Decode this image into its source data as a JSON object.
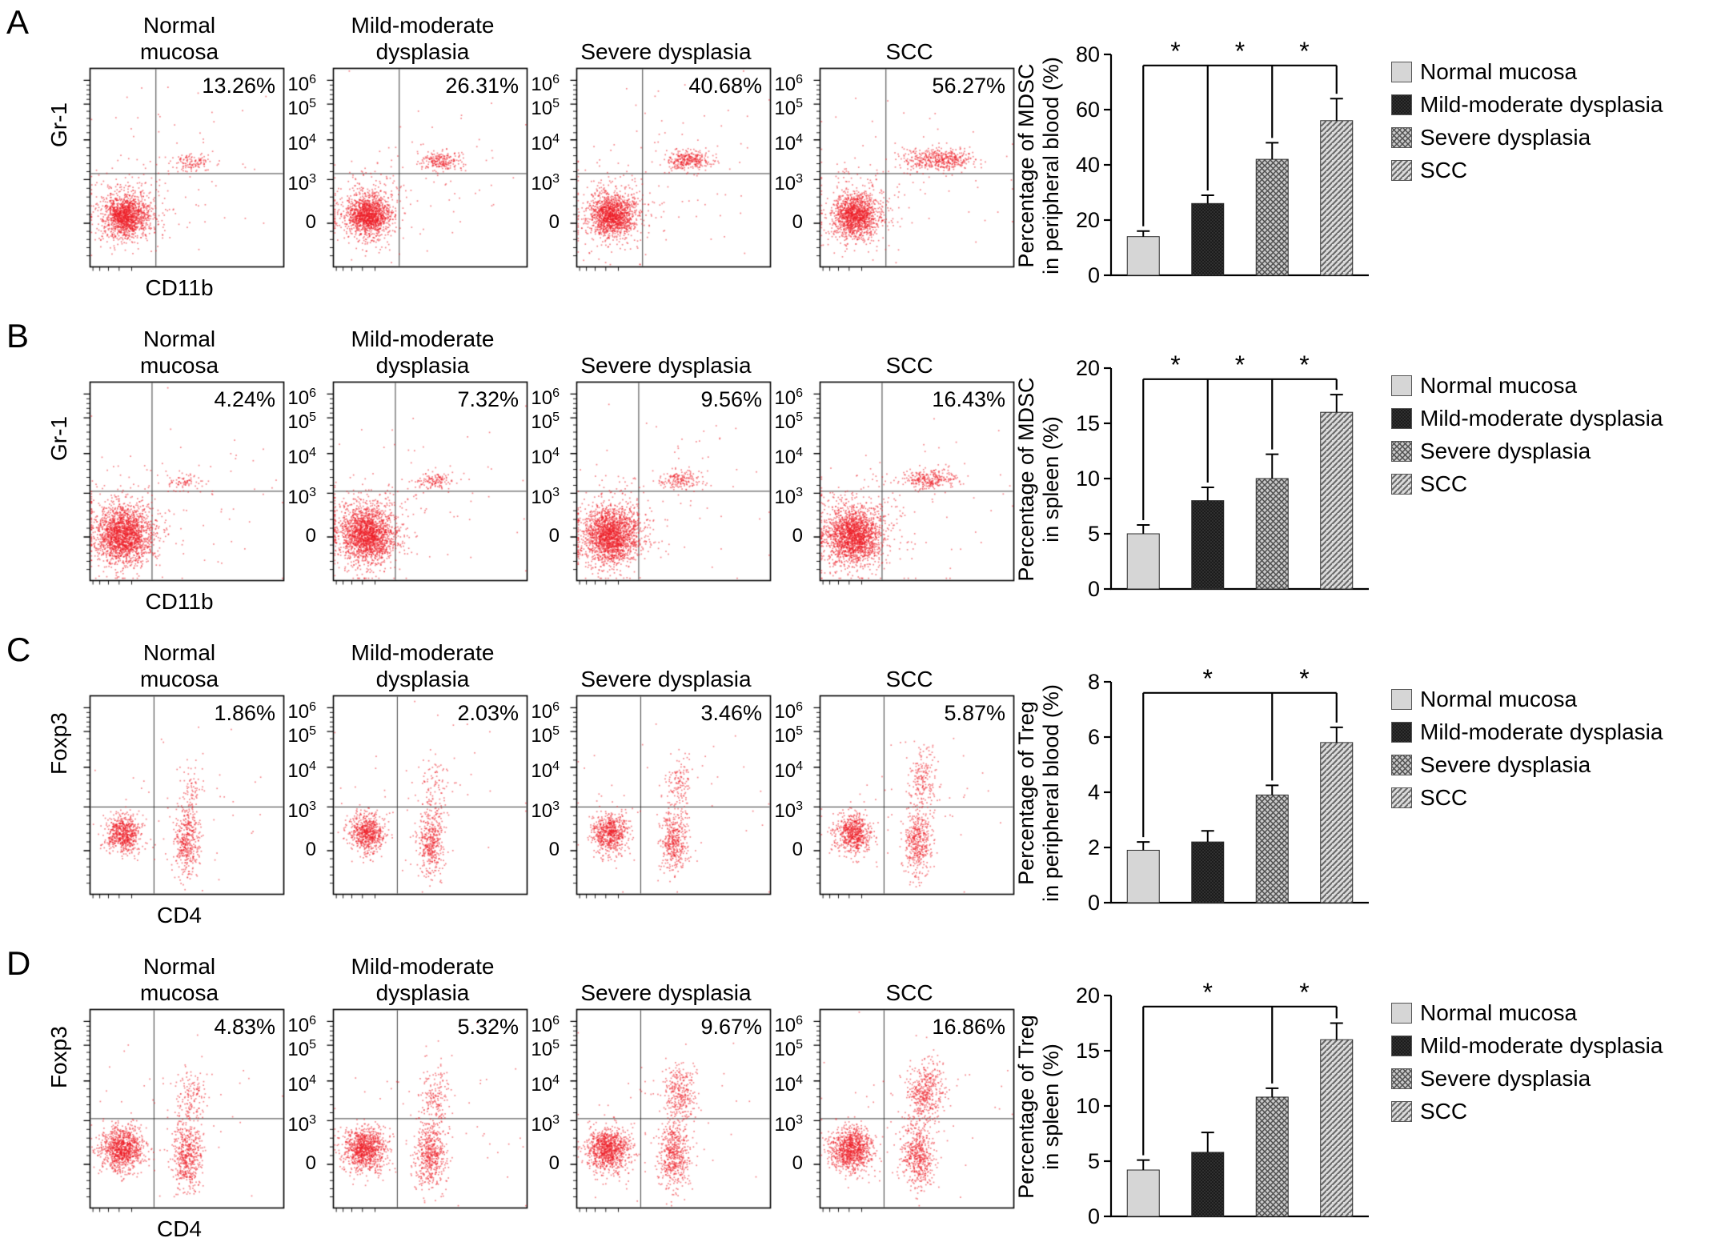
{
  "legend_labels": [
    "Normal mucosa",
    "Mild-moderate dysplasia",
    "Severe dysplasia",
    "SCC"
  ],
  "flow_yticks": [
    "10^6",
    "10^5",
    "10^4",
    "10^3",
    "0"
  ],
  "colors": {
    "dot_red": "#ed1e26",
    "bar_fill_normal": "#d6d6d6",
    "bar_fill_mild": "#1c1c1c",
    "bar_fill_severe": "#9c9c9c",
    "bar_fill_scc": "#b5b5b5",
    "axis": "#000000"
  },
  "rows": [
    {
      "letter": "A",
      "axis": {
        "y": "Gr-1",
        "x": "CD11b"
      },
      "gates": {
        "vx": 0.34,
        "hy": 0.53
      },
      "panels": [
        {
          "title": [
            "Normal",
            "mucosa"
          ],
          "percent": "13.26%",
          "clusters": [
            [
              0.18,
              0.74,
              0.055,
              0.05,
              1200
            ],
            [
              0.19,
              0.72,
              0.1,
              0.095,
              320
            ],
            [
              0.52,
              0.47,
              0.05,
              0.022,
              120
            ],
            [
              0.45,
              0.52,
              0.26,
              0.2,
              80
            ]
          ]
        },
        {
          "title": [
            "Mild-moderate",
            "dysplasia"
          ],
          "percent": "26.31%",
          "clusters": [
            [
              0.18,
              0.74,
              0.055,
              0.05,
              1200
            ],
            [
              0.19,
              0.72,
              0.1,
              0.095,
              320
            ],
            [
              0.55,
              0.465,
              0.055,
              0.024,
              220
            ],
            [
              0.45,
              0.52,
              0.26,
              0.2,
              80
            ]
          ]
        },
        {
          "title": [
            "Severe dysplasia"
          ],
          "percent": "40.68%",
          "clusters": [
            [
              0.18,
              0.74,
              0.055,
              0.05,
              1200
            ],
            [
              0.19,
              0.72,
              0.1,
              0.095,
              320
            ],
            [
              0.57,
              0.46,
              0.06,
              0.026,
              320
            ],
            [
              0.45,
              0.52,
              0.26,
              0.2,
              80
            ]
          ]
        },
        {
          "title": [
            "SCC"
          ],
          "percent": "56.27%",
          "clusters": [
            [
              0.18,
              0.74,
              0.055,
              0.05,
              1150
            ],
            [
              0.19,
              0.72,
              0.1,
              0.095,
              320
            ],
            [
              0.61,
              0.455,
              0.085,
              0.026,
              460
            ],
            [
              0.45,
              0.52,
              0.26,
              0.2,
              80
            ]
          ]
        }
      ]
    },
    {
      "letter": "B",
      "axis": {
        "y": "Gr-1",
        "x": "CD11b"
      },
      "gates": {
        "vx": 0.32,
        "hy": 0.55
      },
      "panels": [
        {
          "title": [
            "Normal",
            "mucosa"
          ],
          "percent": "4.24%",
          "clusters": [
            [
              0.17,
              0.77,
              0.07,
              0.07,
              1700
            ],
            [
              0.18,
              0.74,
              0.115,
              0.105,
              380
            ],
            [
              0.48,
              0.5,
              0.05,
              0.02,
              70
            ],
            [
              0.5,
              0.55,
              0.27,
              0.2,
              70
            ]
          ]
        },
        {
          "title": [
            "Mild-moderate",
            "dysplasia"
          ],
          "percent": "7.32%",
          "clusters": [
            [
              0.17,
              0.77,
              0.07,
              0.07,
              1700
            ],
            [
              0.18,
              0.74,
              0.115,
              0.105,
              380
            ],
            [
              0.52,
              0.495,
              0.05,
              0.022,
              130
            ],
            [
              0.5,
              0.55,
              0.27,
              0.2,
              70
            ]
          ]
        },
        {
          "title": [
            "Severe dysplasia"
          ],
          "percent": "9.56%",
          "clusters": [
            [
              0.17,
              0.77,
              0.07,
              0.07,
              1700
            ],
            [
              0.18,
              0.74,
              0.115,
              0.105,
              380
            ],
            [
              0.53,
              0.49,
              0.055,
              0.022,
              170
            ],
            [
              0.5,
              0.55,
              0.27,
              0.2,
              70
            ]
          ]
        },
        {
          "title": [
            "SCC"
          ],
          "percent": "16.43%",
          "clusters": [
            [
              0.17,
              0.77,
              0.07,
              0.07,
              1700
            ],
            [
              0.18,
              0.74,
              0.115,
              0.105,
              380
            ],
            [
              0.56,
              0.485,
              0.07,
              0.024,
              280
            ],
            [
              0.5,
              0.55,
              0.27,
              0.2,
              70
            ]
          ]
        }
      ]
    },
    {
      "letter": "C",
      "axis": {
        "y": "Foxp3",
        "x": "CD4"
      },
      "gates": {
        "vx": 0.33,
        "hy": 0.56
      },
      "panels": [
        {
          "title": [
            "Normal",
            "mucosa"
          ],
          "percent": "1.86%",
          "clusters": [
            [
              0.17,
              0.69,
              0.045,
              0.05,
              650
            ],
            [
              0.5,
              0.73,
              0.034,
              0.085,
              420
            ],
            [
              0.52,
              0.45,
              0.032,
              0.06,
              60
            ],
            [
              0.45,
              0.55,
              0.25,
              0.2,
              50
            ]
          ]
        },
        {
          "title": [
            "Mild-moderate",
            "dysplasia"
          ],
          "percent": "2.03%",
          "clusters": [
            [
              0.17,
              0.69,
              0.045,
              0.05,
              650
            ],
            [
              0.5,
              0.73,
              0.034,
              0.085,
              420
            ],
            [
              0.52,
              0.44,
              0.034,
              0.062,
              75
            ],
            [
              0.45,
              0.55,
              0.25,
              0.2,
              50
            ]
          ]
        },
        {
          "title": [
            "Severe dysplasia"
          ],
          "percent": "3.46%",
          "clusters": [
            [
              0.17,
              0.69,
              0.045,
              0.05,
              650
            ],
            [
              0.5,
              0.73,
              0.034,
              0.085,
              420
            ],
            [
              0.53,
              0.43,
              0.036,
              0.068,
              120
            ],
            [
              0.45,
              0.55,
              0.25,
              0.2,
              50
            ]
          ]
        },
        {
          "title": [
            "SCC"
          ],
          "percent": "5.87%",
          "clusters": [
            [
              0.17,
              0.69,
              0.045,
              0.05,
              650
            ],
            [
              0.5,
              0.73,
              0.034,
              0.085,
              420
            ],
            [
              0.53,
              0.42,
              0.04,
              0.075,
              190
            ],
            [
              0.45,
              0.55,
              0.25,
              0.2,
              50
            ]
          ]
        }
      ]
    },
    {
      "letter": "D",
      "axis": {
        "y": "Foxp3",
        "x": "CD4"
      },
      "gates": {
        "vx": 0.33,
        "hy": 0.55
      },
      "panels": [
        {
          "title": [
            "Normal",
            "mucosa"
          ],
          "percent": "4.83%",
          "clusters": [
            [
              0.16,
              0.7,
              0.055,
              0.055,
              1000
            ],
            [
              0.5,
              0.73,
              0.04,
              0.085,
              520
            ],
            [
              0.52,
              0.44,
              0.038,
              0.065,
              140
            ],
            [
              0.45,
              0.55,
              0.25,
              0.2,
              60
            ]
          ]
        },
        {
          "title": [
            "Mild-moderate",
            "dysplasia"
          ],
          "percent": "5.32%",
          "clusters": [
            [
              0.16,
              0.7,
              0.055,
              0.055,
              1000
            ],
            [
              0.5,
              0.73,
              0.04,
              0.085,
              520
            ],
            [
              0.52,
              0.44,
              0.04,
              0.065,
              160
            ],
            [
              0.45,
              0.55,
              0.25,
              0.2,
              60
            ]
          ]
        },
        {
          "title": [
            "Severe dysplasia"
          ],
          "percent": "9.67%",
          "clusters": [
            [
              0.16,
              0.7,
              0.055,
              0.055,
              1000
            ],
            [
              0.5,
              0.73,
              0.04,
              0.085,
              520
            ],
            [
              0.53,
              0.42,
              0.042,
              0.07,
              300
            ],
            [
              0.45,
              0.55,
              0.25,
              0.2,
              60
            ]
          ]
        },
        {
          "title": [
            "SCC"
          ],
          "percent": "16.86%",
          "clusters": [
            [
              0.16,
              0.7,
              0.055,
              0.055,
              1000
            ],
            [
              0.5,
              0.73,
              0.04,
              0.085,
              520
            ],
            [
              0.54,
              0.41,
              0.045,
              0.075,
              430
            ],
            [
              0.45,
              0.55,
              0.25,
              0.2,
              60
            ]
          ]
        }
      ]
    }
  ],
  "chart_data": [
    {
      "type": "bar",
      "categories": [
        "Normal mucosa",
        "Mild-moderate dysplasia",
        "Severe dysplasia",
        "SCC"
      ],
      "values": [
        14,
        26,
        42,
        56
      ],
      "errors": [
        2,
        3,
        6,
        8
      ],
      "ylabel_lines": [
        "Percentage of MDSC",
        "in peripheral blood (%)"
      ],
      "ylim": [
        0,
        80
      ],
      "yticks": [
        0,
        20,
        40,
        60,
        80
      ],
      "legend_position": "right",
      "significance": {
        "symbol": "*",
        "level": 76,
        "drops": [
          0,
          1,
          2,
          3
        ],
        "stars": [
          [
            0,
            1
          ],
          [
            1,
            2
          ],
          [
            2,
            3
          ]
        ]
      }
    },
    {
      "type": "bar",
      "categories": [
        "Normal mucosa",
        "Mild-moderate dysplasia",
        "Severe dysplasia",
        "SCC"
      ],
      "values": [
        5,
        8,
        10,
        16
      ],
      "errors": [
        0.8,
        1.2,
        2.2,
        1.6
      ],
      "ylabel_lines": [
        "Percentage of MDSC",
        "in spleen (%)"
      ],
      "ylim": [
        0,
        20
      ],
      "yticks": [
        0,
        5,
        10,
        15,
        20
      ],
      "legend_position": "right",
      "significance": {
        "symbol": "*",
        "level": 19,
        "drops": [
          0,
          1,
          2,
          3
        ],
        "stars": [
          [
            0,
            1
          ],
          [
            1,
            2
          ],
          [
            2,
            3
          ]
        ]
      }
    },
    {
      "type": "bar",
      "categories": [
        "Normal mucosa",
        "Mild-moderate dysplasia",
        "Severe dysplasia",
        "SCC"
      ],
      "values": [
        1.9,
        2.2,
        3.9,
        5.8
      ],
      "errors": [
        0.3,
        0.4,
        0.35,
        0.55
      ],
      "ylabel_lines": [
        "Percentage of Treg",
        "in peripheral blood (%)"
      ],
      "ylim": [
        0,
        8
      ],
      "yticks": [
        0,
        2,
        4,
        6,
        8
      ],
      "legend_position": "right",
      "significance": {
        "symbol": "*",
        "level": 7.6,
        "drops": [
          0,
          2,
          3
        ],
        "stars": [
          [
            0,
            2
          ],
          [
            2,
            3
          ]
        ]
      }
    },
    {
      "type": "bar",
      "categories": [
        "Normal mucosa",
        "Mild-moderate dysplasia",
        "Severe dysplasia",
        "SCC"
      ],
      "values": [
        4.2,
        5.8,
        10.8,
        16
      ],
      "errors": [
        0.9,
        1.8,
        0.8,
        1.5
      ],
      "ylabel_lines": [
        "Percentage of Treg",
        "in spleen (%)"
      ],
      "ylim": [
        0,
        20
      ],
      "yticks": [
        0,
        5,
        10,
        15,
        20
      ],
      "legend_position": "right",
      "significance": {
        "symbol": "*",
        "level": 19,
        "drops": [
          0,
          2,
          3
        ],
        "stars": [
          [
            0,
            2
          ],
          [
            2,
            3
          ]
        ]
      }
    }
  ]
}
